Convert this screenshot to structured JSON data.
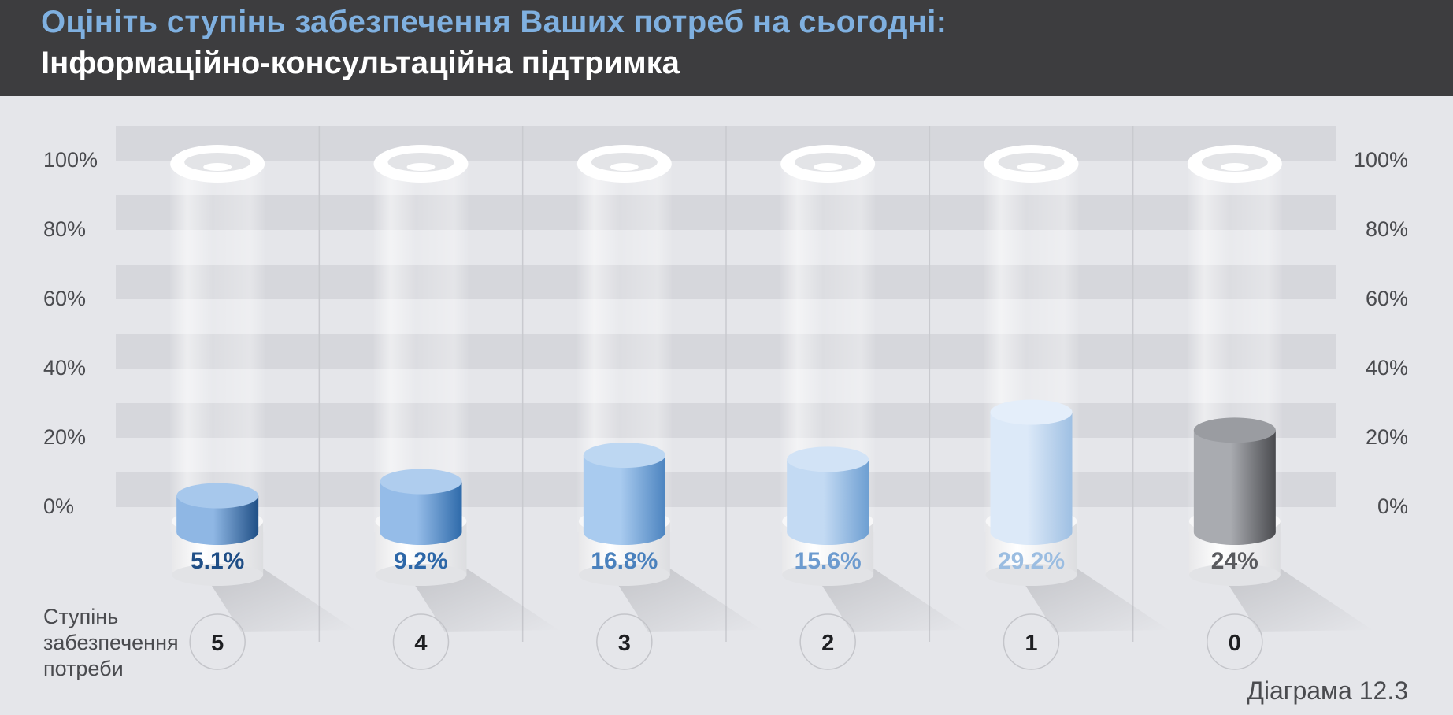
{
  "header": {
    "title": "Оцініть ступінь забезпечення Ваших потреб на сьогодні:",
    "subtitle": "Інформаційно-консультаційна підтримка"
  },
  "axis": {
    "ticks": [
      "0%",
      "20%",
      "40%",
      "60%",
      "80%",
      "100%"
    ],
    "xlabel_lines": [
      "Ступінь",
      "забезпечення",
      "потреби"
    ]
  },
  "footer": {
    "caption": "Діаграма 12.3"
  },
  "colors": {
    "header_bg": "#3d3d3f",
    "title_accent": "#7fb0e0",
    "background": "#e5e6ea"
  },
  "chart_data": {
    "type": "bar",
    "title": "Оцініть ступінь забезпечення Ваших потреб на сьогодні:",
    "subtitle": "Інформаційно-консультаційна підтримка",
    "xlabel": "Ступінь забезпечення потреби",
    "ylabel": "",
    "ylim": [
      0,
      100
    ],
    "categories": [
      "5",
      "4",
      "3",
      "2",
      "1",
      "0"
    ],
    "values": [
      5.1,
      9.2,
      16.8,
      15.6,
      29.2,
      24
    ],
    "value_labels": [
      "5.1%",
      "9.2%",
      "16.8%",
      "15.6%",
      "29.2%",
      "24%"
    ],
    "bar_colors": [
      {
        "light": "#8fb7e4",
        "dark": "#1f4f86",
        "top": "#a7c8ec",
        "label": "#1f4e86"
      },
      {
        "light": "#95bce8",
        "dark": "#2e6aaa",
        "top": "#afcdee",
        "label": "#2d67a8"
      },
      {
        "light": "#a9cbef",
        "dark": "#4c84c0",
        "top": "#bdd7f2",
        "label": "#4a81bd"
      },
      {
        "light": "#c3daf3",
        "dark": "#6e9fd2",
        "top": "#d2e3f6",
        "label": "#6d9bcf"
      },
      {
        "light": "#dce9f8",
        "dark": "#9fc0e3",
        "top": "#e4eefa",
        "label": "#9bbde1"
      },
      {
        "light": "#a9abb0",
        "dark": "#4a4b4f",
        "top": "#9a9ca1",
        "label": "#5a5b5f"
      }
    ],
    "grid": true,
    "legend": "none"
  }
}
